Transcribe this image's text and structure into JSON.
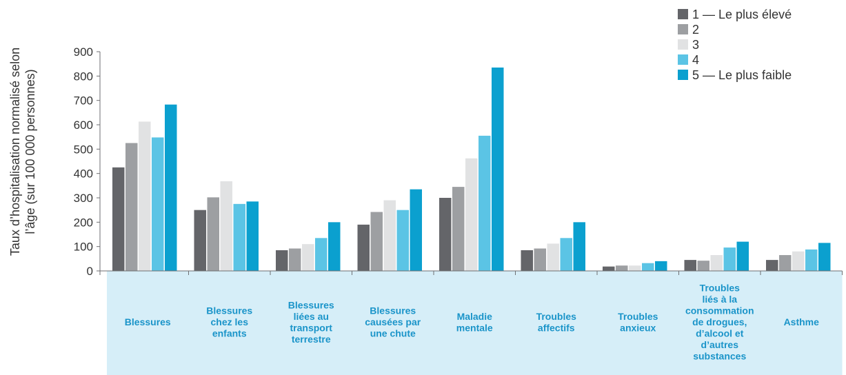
{
  "chart_data": {
    "type": "bar",
    "title": "",
    "ylabel": [
      "Taux d’hospitalisation normalisé selon",
      "l’âge (sur 100 000 personnes)"
    ],
    "ylim": [
      0,
      900
    ],
    "yticks": [
      0,
      100,
      200,
      300,
      400,
      500,
      600,
      700,
      800,
      900
    ],
    "legend_position": "top-right",
    "grid": false,
    "categories": [
      [
        "Blessures"
      ],
      [
        "Blessures",
        "chez les",
        "enfants"
      ],
      [
        "Blessures",
        "liées au",
        "transport",
        "terrestre"
      ],
      [
        "Blessures",
        "causées par",
        "une chute"
      ],
      [
        "Maladie",
        "mentale"
      ],
      [
        "Troubles",
        "affectifs"
      ],
      [
        "Troubles",
        "anxieux"
      ],
      [
        "Troubles",
        "liés à la",
        "consommation",
        "de drogues,",
        "d’alcool et",
        "d’autres",
        "substances"
      ],
      [
        "Asthme"
      ]
    ],
    "series": [
      {
        "name": "1 — Le plus élevé",
        "color": "#646569",
        "values": [
          425,
          250,
          85,
          190,
          300,
          85,
          18,
          45,
          45
        ]
      },
      {
        "name": "2",
        "color": "#9d9fa2",
        "values": [
          525,
          302,
          92,
          242,
          345,
          92,
          22,
          42,
          65
        ]
      },
      {
        "name": "3",
        "color": "#e1e2e3",
        "values": [
          613,
          368,
          110,
          290,
          462,
          112,
          22,
          65,
          80
        ]
      },
      {
        "name": "4",
        "color": "#5bc4e5",
        "values": [
          548,
          275,
          135,
          250,
          555,
          135,
          32,
          96,
          88
        ]
      },
      {
        "name": "5 — Le plus faible",
        "color": "#0ba0cf",
        "values": [
          683,
          285,
          200,
          335,
          835,
          200,
          40,
          120,
          115
        ]
      }
    ]
  },
  "colors": {
    "axis": "#6d6e71",
    "category_band": "#d6eef8",
    "category_text": "#1a94c9"
  }
}
